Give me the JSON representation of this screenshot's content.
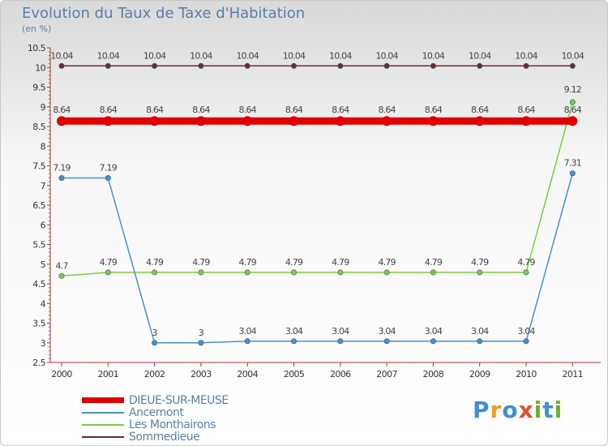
{
  "chart_data": {
    "type": "line",
    "title": "Evolution du Taux de Taxe d'Habitation",
    "subtitle": "(en %)",
    "xlabel": "",
    "ylabel": "",
    "categories": [
      "2000",
      "2001",
      "2002",
      "2003",
      "2004",
      "2005",
      "2006",
      "2007",
      "2008",
      "2009",
      "2010",
      "2011"
    ],
    "ylim": [
      2.5,
      10.5
    ],
    "yticks": [
      "2.5",
      "3",
      "3.5",
      "4",
      "4.5",
      "5",
      "5.5",
      "6",
      "6.5",
      "7",
      "7.5",
      "8",
      "8.5",
      "9",
      "9.5",
      "10",
      "10.5"
    ],
    "grid": false,
    "legend_position": "bottom-left",
    "series": [
      {
        "name": "DIEUE-SUR-MEUSE",
        "color": "#e00000",
        "values": [
          8.64,
          8.64,
          8.64,
          8.64,
          8.64,
          8.64,
          8.64,
          8.64,
          8.64,
          8.64,
          8.64,
          8.64
        ],
        "labels": [
          "8.64",
          "8.64",
          "8.64",
          "8.64",
          "8.64",
          "8.64",
          "8.64",
          "8.64",
          "8.64",
          "8.64",
          "8.64",
          "8.64"
        ]
      },
      {
        "name": "Ancemont",
        "color": "#4a90c8",
        "values": [
          7.19,
          7.19,
          3,
          3,
          3.04,
          3.04,
          3.04,
          3.04,
          3.04,
          3.04,
          3.04,
          7.31
        ],
        "labels": [
          "7.19",
          "7.19",
          "3",
          "3",
          "3.04",
          "3.04",
          "3.04",
          "3.04",
          "3.04",
          "3.04",
          "3.04",
          "7.31"
        ]
      },
      {
        "name": "Les Monthairons",
        "color": "#7ccc44",
        "values": [
          4.7,
          4.79,
          4.79,
          4.79,
          4.79,
          4.79,
          4.79,
          4.79,
          4.79,
          4.79,
          4.79,
          9.12
        ],
        "labels": [
          "4.7",
          "4.79",
          "4.79",
          "4.79",
          "4.79",
          "4.79",
          "4.79",
          "4.79",
          "4.79",
          "4.79",
          "4.79",
          "9.12"
        ]
      },
      {
        "name": "Sommedieue",
        "color": "#6e2b2b",
        "values": [
          10.04,
          10.04,
          10.04,
          10.04,
          10.04,
          10.04,
          10.04,
          10.04,
          10.04,
          10.04,
          10.04,
          10.04
        ],
        "labels": [
          "10.04",
          "10.04",
          "10.04",
          "10.04",
          "10.04",
          "10.04",
          "10.04",
          "10.04",
          "10.04",
          "10.04",
          "10.04",
          "10.04"
        ]
      }
    ]
  },
  "brand": {
    "letters": [
      "P",
      "r",
      "o",
      "x",
      "i",
      "t",
      "i"
    ]
  }
}
